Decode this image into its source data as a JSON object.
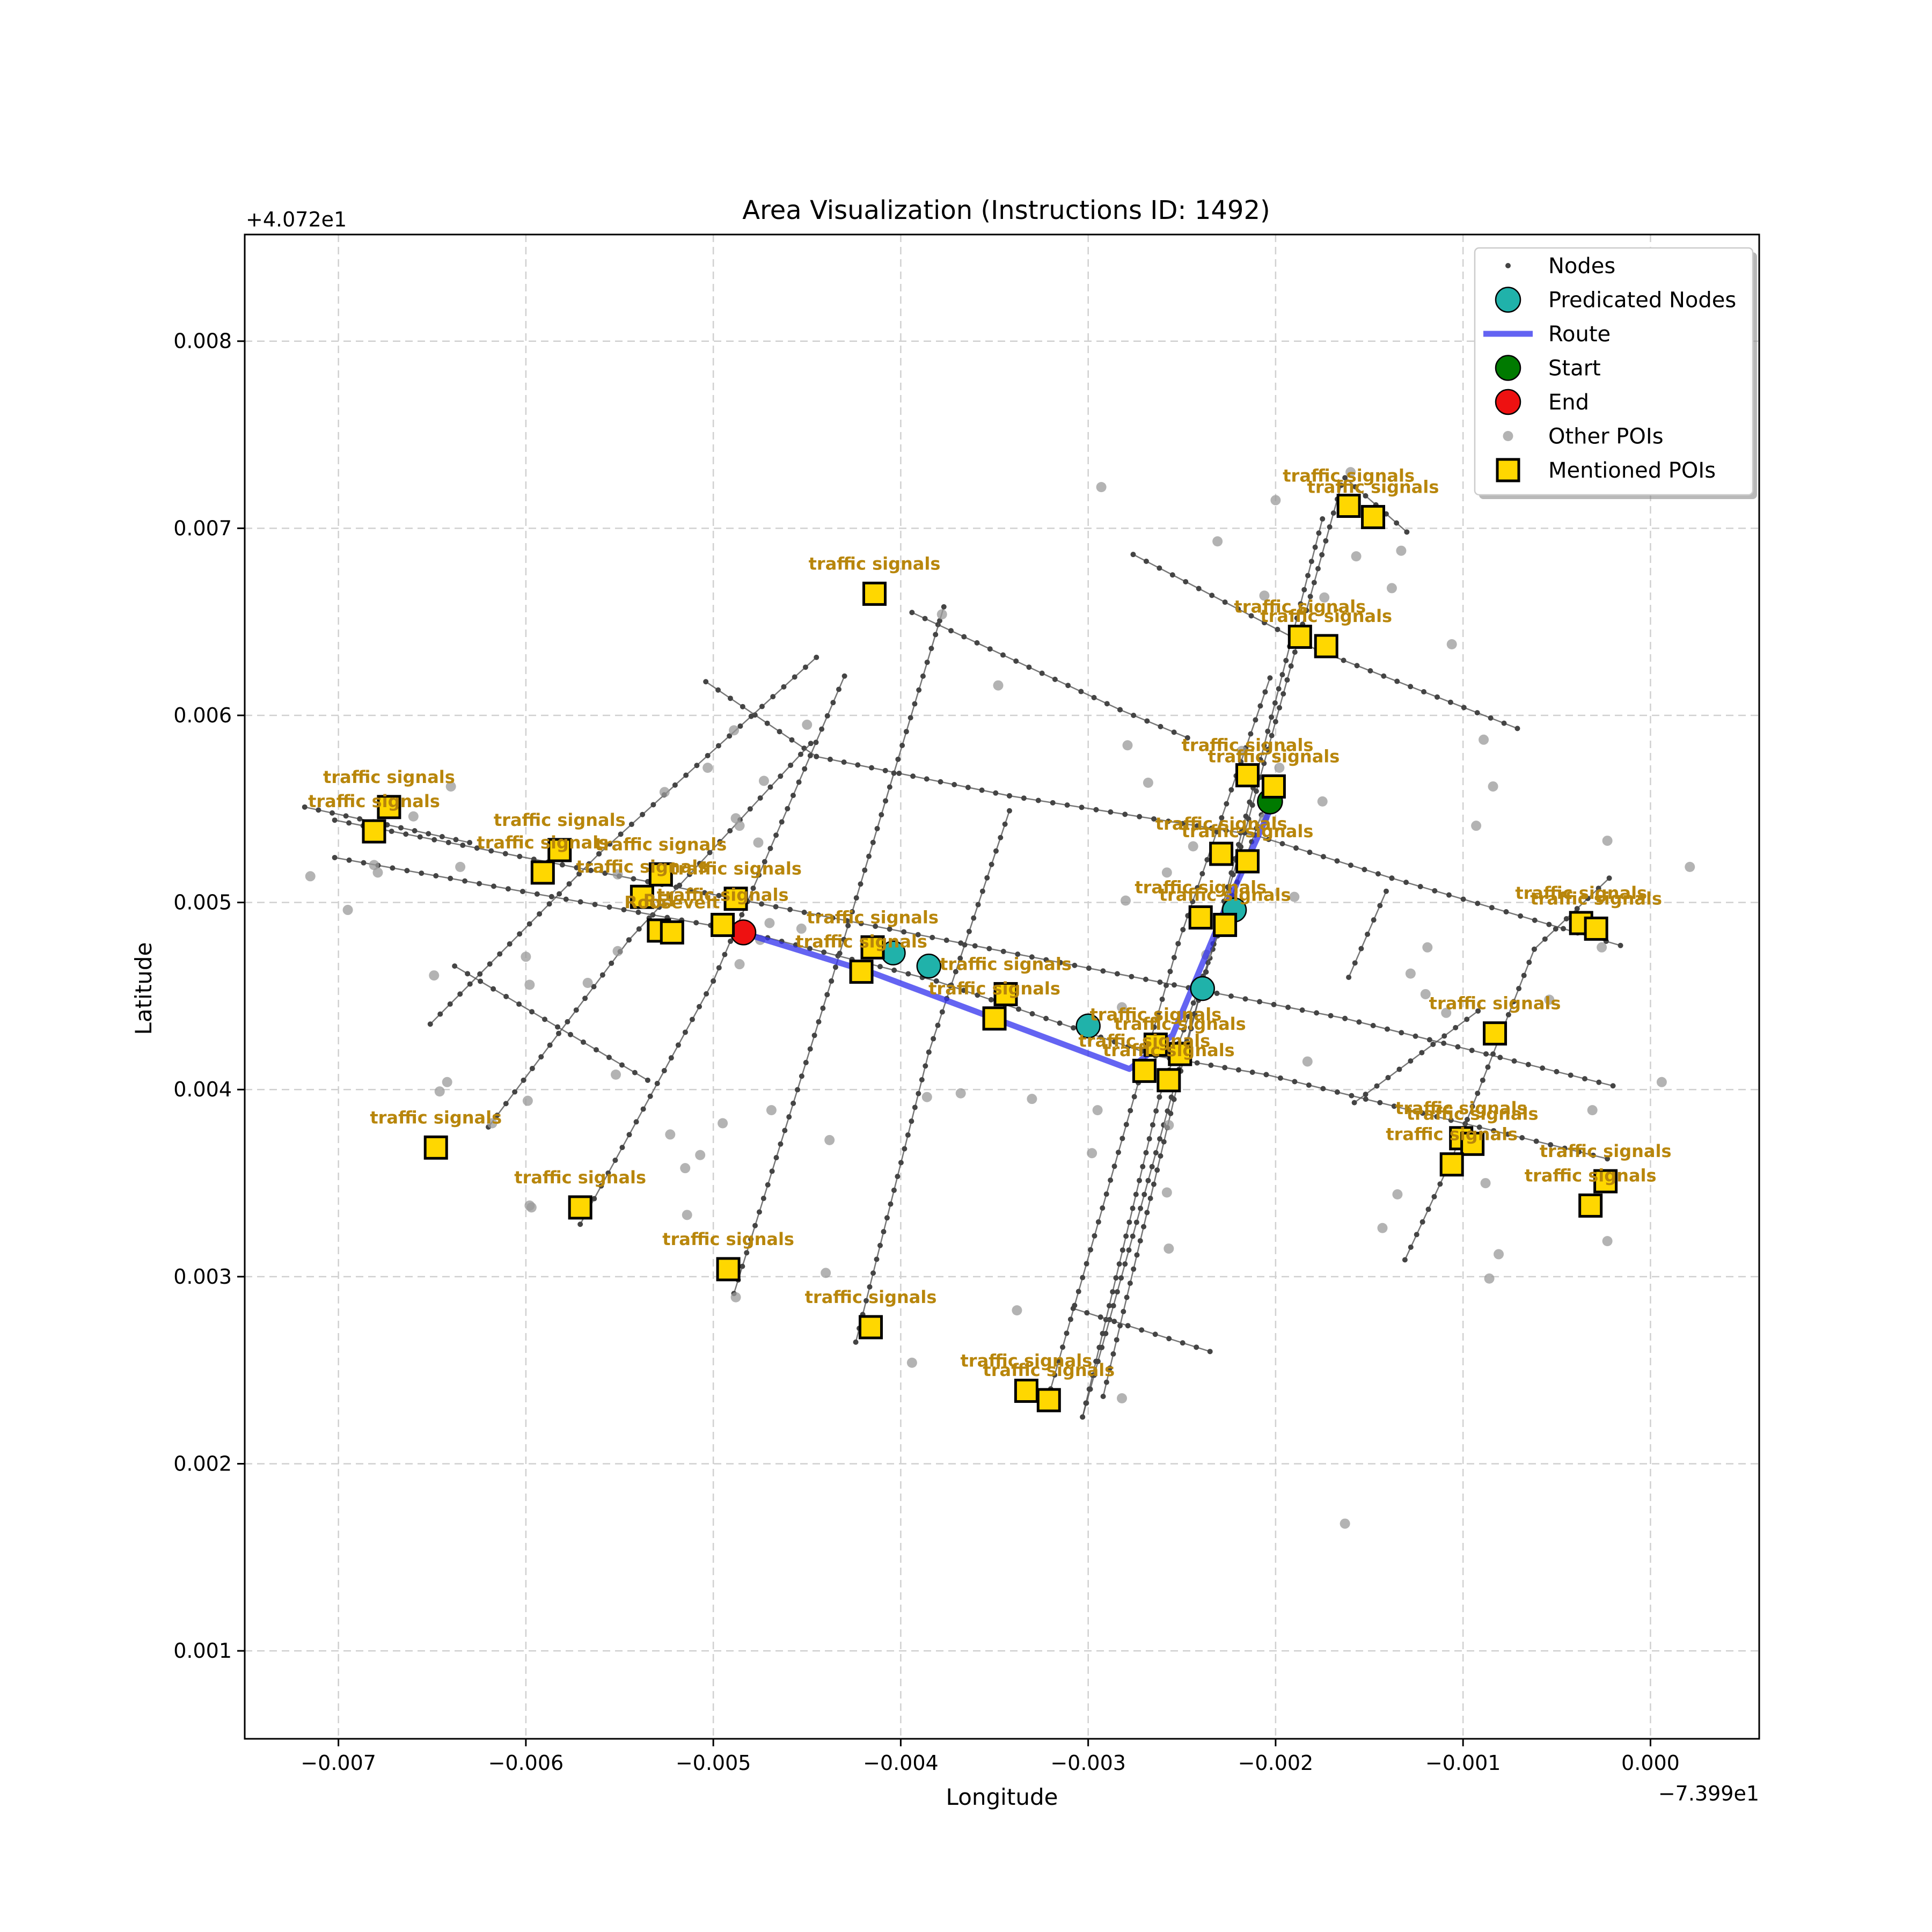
{
  "chart_data": {
    "type": "scatter",
    "title": "Area Visualization (Instructions ID: 1492)",
    "xlabel": "Longitude",
    "ylabel": "Latitude",
    "x_offset_label": "−7.399e1",
    "y_offset_label": "+4.072e1",
    "xlim": [
      -0.0075,
      0.00058
    ],
    "ylim": [
      0.00053,
      0.00857
    ],
    "grid": true,
    "x_ticks": [
      -0.007,
      -0.006,
      -0.005,
      -0.004,
      -0.003,
      -0.002,
      -0.001,
      0.0
    ],
    "x_tick_labels": [
      "−0.007",
      "−0.006",
      "−0.005",
      "−0.004",
      "−0.003",
      "−0.002",
      "−0.001",
      "0.000"
    ],
    "y_ticks": [
      0.001,
      0.002,
      0.003,
      0.004,
      0.005,
      0.006,
      0.007,
      0.008
    ],
    "y_tick_labels": [
      "0.001",
      "0.002",
      "0.003",
      "0.004",
      "0.005",
      "0.006",
      "0.007",
      "0.008"
    ],
    "legend": {
      "position": "top-right",
      "entries": [
        "Nodes",
        "Predicated Nodes",
        "Route",
        "Start",
        "End",
        "Other POIs",
        "Mentioned POIs"
      ]
    },
    "colors": {
      "node": "#444444",
      "predicated": "#20b2aa",
      "route": "#3030ee",
      "start": "#007a00",
      "end": "#ee1111",
      "other_poi": "#9a9a9a",
      "mentioned_poi": "#ffd700",
      "poi_label": "#b8860b",
      "street": "#555555"
    },
    "streets": [
      [
        [
          -0.00702,
          0.00544
        ],
        [
          -0.00163,
          0.00438
        ],
        [
          -0.0002,
          0.00402
        ]
      ],
      [
        [
          -0.00702,
          0.00524
        ],
        [
          -0.00486,
          0.00485
        ],
        [
          -0.00381,
          0.00458
        ],
        [
          -0.00264,
          0.00418
        ],
        [
          -0.00205,
          0.00408
        ],
        [
          -0.00023,
          0.00363
        ]
      ],
      [
        [
          -0.00718,
          0.00551
        ],
        [
          -0.0063,
          0.00532
        ]
      ],
      [
        [
          -0.00504,
          0.00618
        ],
        [
          -0.00445,
          0.00578
        ],
        [
          -0.00342,
          0.00557
        ],
        [
          -0.00211,
          0.00536
        ],
        [
          -0.00138,
          0.00513
        ],
        [
          -0.00016,
          0.00477
        ]
      ],
      [
        [
          -0.00394,
          0.00655
        ],
        [
          -0.00283,
          0.00603
        ],
        [
          -0.00247,
          0.00588
        ]
      ],
      [
        [
          -0.00276,
          0.00686
        ],
        [
          -0.00178,
          0.00635
        ],
        [
          -0.00071,
          0.00593
        ]
      ],
      [
        [
          -0.00163,
          0.00727
        ],
        [
          -0.0013,
          0.00698
        ]
      ],
      [
        [
          -0.00651,
          0.00435
        ],
        [
          -0.00561,
          0.00526
        ],
        [
          -0.00445,
          0.00631
        ]
      ],
      [
        [
          -0.0062,
          0.0038
        ],
        [
          -0.00545,
          0.0048
        ],
        [
          -0.00448,
          0.00585
        ]
      ],
      [
        [
          -0.00571,
          0.00328
        ],
        [
          -0.005,
          0.00458
        ],
        [
          -0.0043,
          0.00621
        ]
      ],
      [
        [
          -0.00489,
          0.00291
        ],
        [
          -0.00437,
          0.00458
        ],
        [
          -0.00377,
          0.00658
        ]
      ],
      [
        [
          -0.00424,
          0.00265
        ],
        [
          -0.00385,
          0.0042
        ],
        [
          -0.00342,
          0.00549
        ]
      ],
      [
        [
          -0.00303,
          0.00225
        ],
        [
          -0.00262,
          0.00396
        ],
        [
          -0.00205,
          0.00554
        ]
      ],
      [
        [
          -0.0032,
          0.0024
        ],
        [
          -0.00252,
          0.00478
        ],
        [
          -0.00203,
          0.0062
        ]
      ],
      [
        [
          -0.00292,
          0.00236
        ],
        [
          -0.00247,
          0.00425
        ],
        [
          -0.00175,
          0.00705
        ]
      ],
      [
        [
          -0.00303,
          0.00225
        ],
        [
          -0.00165,
          0.00723
        ]
      ],
      [
        [
          -0.00308,
          0.00283
        ],
        [
          -0.00235,
          0.0026
        ]
      ],
      [
        [
          -0.00131,
          0.00309
        ],
        [
          -0.00106,
          0.00363
        ],
        [
          -0.00062,
          0.00475
        ],
        [
          -0.00022,
          0.00513
        ]
      ],
      [
        [
          -0.00158,
          0.00393
        ],
        [
          -0.00092,
          0.00442
        ]
      ],
      [
        [
          -0.00161,
          0.0046
        ],
        [
          -0.00141,
          0.00506
        ]
      ],
      [
        [
          -0.00638,
          0.00466
        ],
        [
          -0.00535,
          0.00405
        ]
      ]
    ],
    "route": [
      [
        -0.00201,
        0.00554
      ],
      [
        -0.00228,
        0.00494
      ],
      [
        -0.00255,
        0.00429
      ],
      [
        -0.00278,
        0.00411
      ],
      [
        -0.00414,
        0.00462
      ],
      [
        -0.00485,
        0.00484
      ]
    ],
    "start": [
      -0.00203,
      0.00554
    ],
    "end": [
      -0.00484,
      0.00484
    ],
    "predicated_nodes": [
      [
        -0.00222,
        0.00496
      ],
      [
        -0.00239,
        0.00454
      ],
      [
        -0.003,
        0.00434
      ],
      [
        -0.00385,
        0.00466
      ],
      [
        -0.00404,
        0.00473
      ]
    ],
    "other_pois": [
      [
        -0.00715,
        0.00514
      ],
      [
        -0.00695,
        0.00496
      ],
      [
        -0.00681,
        0.0052
      ],
      [
        -0.00679,
        0.00516
      ],
      [
        -0.0066,
        0.00546
      ],
      [
        -0.0064,
        0.00562
      ],
      [
        -0.00635,
        0.00519
      ],
      [
        -0.00649,
        0.00461
      ],
      [
        -0.00646,
        0.00399
      ],
      [
        -0.00642,
        0.00404
      ],
      [
        -0.00598,
        0.00456
      ],
      [
        -0.006,
        0.00471
      ],
      [
        -0.00599,
        0.00394
      ],
      [
        -0.00597,
        0.00337
      ],
      [
        -0.00598,
        0.00338
      ],
      [
        -0.00618,
        0.00382
      ],
      [
        -0.00567,
        0.00457
      ],
      [
        -0.00551,
        0.00474
      ],
      [
        -0.00551,
        0.00515
      ],
      [
        -0.00526,
        0.00559
      ],
      [
        -0.00552,
        0.00408
      ],
      [
        -0.00523,
        0.00376
      ],
      [
        -0.00507,
        0.00365
      ],
      [
        -0.00515,
        0.00358
      ],
      [
        -0.00514,
        0.00333
      ],
      [
        -0.00488,
        0.00289
      ],
      [
        -0.00489,
        0.00305
      ],
      [
        -0.00486,
        0.00467
      ],
      [
        -0.00488,
        0.00545
      ],
      [
        -0.00486,
        0.00541
      ],
      [
        -0.00489,
        0.00592
      ],
      [
        -0.00503,
        0.00572
      ],
      [
        -0.00473,
        0.00565
      ],
      [
        -0.0045,
        0.00595
      ],
      [
        -0.00453,
        0.00486
      ],
      [
        -0.00475,
        0.0048
      ],
      [
        -0.00476,
        0.00532
      ],
      [
        -0.0047,
        0.00489
      ],
      [
        -0.00495,
        0.00382
      ],
      [
        -0.0044,
        0.00302
      ],
      [
        -0.00438,
        0.00373
      ],
      [
        -0.00469,
        0.00389
      ],
      [
        -0.00394,
        0.00254
      ],
      [
        -0.00386,
        0.00396
      ],
      [
        -0.00368,
        0.00398
      ],
      [
        -0.00378,
        0.00654
      ],
      [
        -0.00348,
        0.00616
      ],
      [
        -0.0033,
        0.00395
      ],
      [
        -0.00338,
        0.00282
      ],
      [
        -0.00295,
        0.00389
      ],
      [
        -0.00298,
        0.00366
      ],
      [
        -0.00282,
        0.00235
      ],
      [
        -0.00293,
        0.00722
      ],
      [
        -0.00282,
        0.00444
      ],
      [
        -0.00279,
        0.00584
      ],
      [
        -0.00268,
        0.00564
      ],
      [
        -0.00258,
        0.00345
      ],
      [
        -0.00258,
        0.00516
      ],
      [
        -0.00257,
        0.00381
      ],
      [
        -0.00257,
        0.00315
      ],
      [
        -0.00244,
        0.0053
      ],
      [
        -0.00231,
        0.00693
      ],
      [
        -0.00218,
        0.00581
      ],
      [
        -0.00214,
        0.00568
      ],
      [
        -0.00206,
        0.00664
      ],
      [
        -0.00206,
        0.00545
      ],
      [
        -0.002,
        0.00715
      ],
      [
        -0.00198,
        0.00572
      ],
      [
        -0.00183,
        0.00415
      ],
      [
        -0.00174,
        0.00663
      ],
      [
        -0.0016,
        0.0073
      ],
      [
        -0.00163,
        0.00168
      ],
      [
        -0.00157,
        0.00685
      ],
      [
        -0.00138,
        0.00668
      ],
      [
        -0.00133,
        0.00688
      ],
      [
        -0.00128,
        0.00462
      ],
      [
        -0.00135,
        0.00344
      ],
      [
        -0.00143,
        0.00326
      ],
      [
        -0.0012,
        0.00451
      ],
      [
        -0.00119,
        0.00476
      ],
      [
        -0.00106,
        0.00638
      ],
      [
        -0.00093,
        0.00541
      ],
      [
        -0.00089,
        0.00587
      ],
      [
        -0.00084,
        0.00562
      ],
      [
        -0.00088,
        0.0035
      ],
      [
        -0.00081,
        0.00312
      ],
      [
        -0.00086,
        0.00299
      ],
      [
        -0.00109,
        0.00441
      ],
      [
        -0.00054,
        0.00448
      ],
      [
        -0.00026,
        0.00476
      ],
      [
        -0.00023,
        0.00319
      ],
      [
        -0.00031,
        0.00389
      ],
      [
        -0.00023,
        0.00533
      ],
      [
        6e-05,
        0.00404
      ],
      [
        0.00021,
        0.00519
      ],
      [
        -0.00237,
        0.00472
      ],
      [
        -0.0025,
        0.00423
      ],
      [
        -0.0019,
        0.00503
      ],
      [
        -0.00175,
        0.00554
      ],
      [
        -0.0028,
        0.00501
      ]
    ],
    "mentioned_pois": [
      {
        "x": -0.00673,
        "y": 0.00551,
        "label": "traffic signals"
      },
      {
        "x": -0.00681,
        "y": 0.00538,
        "label": "traffic signals"
      },
      {
        "x": -0.00582,
        "y": 0.00528,
        "label": "traffic signals"
      },
      {
        "x": -0.00591,
        "y": 0.00516,
        "label": "traffic signals"
      },
      {
        "x": -0.00528,
        "y": 0.00515,
        "label": "traffic signals"
      },
      {
        "x": -0.00538,
        "y": 0.00503,
        "label": "traffic signals"
      },
      {
        "x": -0.00488,
        "y": 0.00502,
        "label": "traffic signals"
      },
      {
        "x": -0.00529,
        "y": 0.00485,
        "label": "REI"
      },
      {
        "x": -0.00522,
        "y": 0.00484,
        "label": "Roosevelt"
      },
      {
        "x": -0.00495,
        "y": 0.00488,
        "label": "traffic signals"
      },
      {
        "x": -0.00414,
        "y": 0.00665,
        "label": "traffic signals"
      },
      {
        "x": -0.00415,
        "y": 0.00476,
        "label": "traffic signals"
      },
      {
        "x": -0.00421,
        "y": 0.00463,
        "label": "traffic signals"
      },
      {
        "x": -0.00344,
        "y": 0.00451,
        "label": "traffic signals"
      },
      {
        "x": -0.0035,
        "y": 0.00438,
        "label": "traffic signals"
      },
      {
        "x": -0.00648,
        "y": 0.00369,
        "label": "traffic signals"
      },
      {
        "x": -0.00571,
        "y": 0.00337,
        "label": "traffic signals"
      },
      {
        "x": -0.00492,
        "y": 0.00304,
        "label": "traffic signals"
      },
      {
        "x": -0.00416,
        "y": 0.00273,
        "label": "traffic signals"
      },
      {
        "x": -0.00333,
        "y": 0.00239,
        "label": "traffic signals"
      },
      {
        "x": -0.00321,
        "y": 0.00234,
        "label": "traffic signals"
      },
      {
        "x": -0.00264,
        "y": 0.00424,
        "label": "traffic signals"
      },
      {
        "x": -0.00251,
        "y": 0.00419,
        "label": "traffic signals"
      },
      {
        "x": -0.0027,
        "y": 0.0041,
        "label": "traffic signals"
      },
      {
        "x": -0.00257,
        "y": 0.00405,
        "label": "traffic signals"
      },
      {
        "x": -0.00229,
        "y": 0.00526,
        "label": "traffic signals"
      },
      {
        "x": -0.00215,
        "y": 0.00522,
        "label": "traffic signals"
      },
      {
        "x": -0.0024,
        "y": 0.00492,
        "label": "traffic signals"
      },
      {
        "x": -0.00227,
        "y": 0.00488,
        "label": "traffic signals"
      },
      {
        "x": -0.00215,
        "y": 0.00568,
        "label": "traffic signals"
      },
      {
        "x": -0.00201,
        "y": 0.00562,
        "label": "traffic signals"
      },
      {
        "x": -0.00187,
        "y": 0.00642,
        "label": "traffic signals"
      },
      {
        "x": -0.00173,
        "y": 0.00637,
        "label": "traffic signals"
      },
      {
        "x": -0.00161,
        "y": 0.00712,
        "label": "traffic signals"
      },
      {
        "x": -0.00148,
        "y": 0.00706,
        "label": "traffic signals"
      },
      {
        "x": -0.00083,
        "y": 0.0043,
        "label": "traffic signals"
      },
      {
        "x": -0.00101,
        "y": 0.00374,
        "label": "traffic signals"
      },
      {
        "x": -0.00095,
        "y": 0.00371,
        "label": "traffic signals"
      },
      {
        "x": -0.00106,
        "y": 0.0036,
        "label": "traffic signals"
      },
      {
        "x": -0.00037,
        "y": 0.00489,
        "label": "traffic signals"
      },
      {
        "x": -0.00029,
        "y": 0.00486,
        "label": "traffic signals"
      },
      {
        "x": -0.00024,
        "y": 0.00351,
        "label": "traffic signals"
      },
      {
        "x": -0.00032,
        "y": 0.00338,
        "label": "traffic signals"
      }
    ]
  }
}
